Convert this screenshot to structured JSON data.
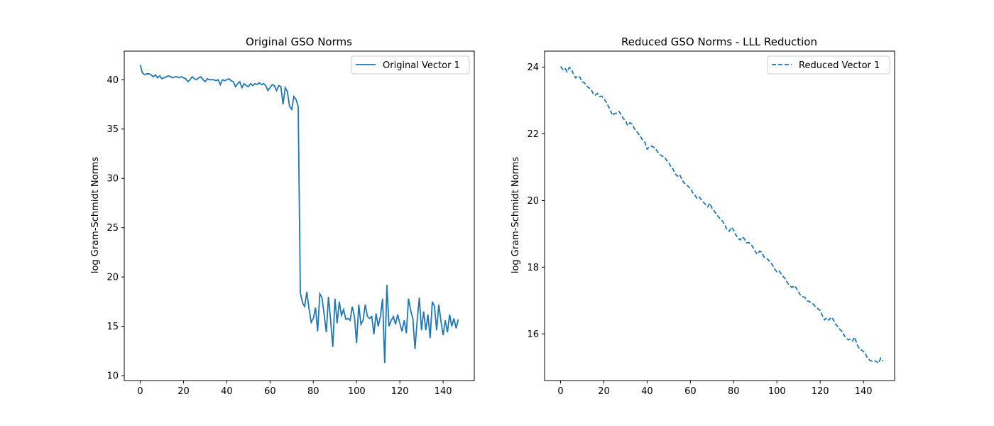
{
  "colors": {
    "series": "#1f77b4",
    "axes": "#000000",
    "legend_border": "#cccccc",
    "background": "#ffffff"
  },
  "chart_data": [
    {
      "type": "line",
      "title": "Original GSO Norms",
      "xlabel": "",
      "ylabel": "log Gram-Schmidt Norms",
      "xlim": [
        -7.4,
        154.4
      ],
      "ylim": [
        9.5,
        42.9
      ],
      "xticks": [
        0,
        20,
        40,
        60,
        80,
        100,
        120,
        140
      ],
      "yticks": [
        10,
        15,
        20,
        25,
        30,
        35,
        40
      ],
      "grid": false,
      "legend_position": "top-right",
      "series": [
        {
          "name": "Original Vector 1",
          "line_style": "solid",
          "color": "#1f77b4",
          "x_start": 0,
          "y": [
            41.5,
            40.7,
            40.5,
            40.6,
            40.6,
            40.5,
            40.3,
            40.5,
            40.2,
            40.4,
            40.1,
            40.2,
            40.3,
            40.4,
            40.3,
            40.2,
            40.3,
            40.3,
            40.2,
            40.3,
            40.2,
            40.1,
            39.8,
            40.0,
            40.3,
            40.1,
            40.0,
            40.2,
            40.3,
            40.0,
            39.8,
            40.1,
            40.0,
            40.0,
            40.0,
            39.9,
            40.0,
            39.5,
            40.0,
            39.9,
            40.0,
            40.1,
            39.9,
            39.8,
            39.3,
            39.6,
            39.8,
            39.2,
            39.6,
            39.4,
            39.3,
            39.6,
            39.4,
            39.6,
            39.5,
            39.7,
            39.5,
            39.6,
            39.4,
            38.9,
            39.2,
            39.5,
            39.4,
            38.9,
            39.4,
            39.3,
            37.5,
            39.2,
            38.8,
            37.3,
            37.0,
            38.3,
            38.0,
            37.3,
            18.4,
            17.4,
            17.0,
            18.5,
            16.8,
            15.4,
            15.8,
            16.9,
            14.5,
            18.3,
            17.9,
            16.2,
            14.4,
            18.0,
            15.6,
            12.9,
            17.8,
            15.3,
            17.5,
            16.1,
            16.7,
            15.7,
            15.8,
            15.6,
            17.0,
            16.0,
            13.3,
            17.2,
            15.2,
            15.6,
            17.2,
            16.0,
            15.8,
            16.0,
            14.2,
            16.3,
            15.0,
            16.0,
            17.8,
            11.3,
            19.2,
            15.0,
            15.6,
            16.0,
            15.2,
            16.2,
            15.3,
            14.5,
            15.6,
            14.3,
            17.8,
            16.6,
            15.8,
            12.7,
            15.6,
            17.9,
            14.6,
            16.5,
            14.6,
            16.2,
            13.8,
            17.5,
            17.0,
            14.6,
            17.2,
            15.5,
            14.1,
            15.6,
            14.4,
            16.2,
            15.0,
            15.8,
            14.8,
            15.7
          ]
        }
      ]
    },
    {
      "type": "line",
      "title": "Reduced GSO Norms - LLL Reduction",
      "xlabel": "",
      "ylabel": "log Gram-Schmidt Norms",
      "xlim": [
        -7.4,
        154.4
      ],
      "ylim": [
        14.6,
        24.48
      ],
      "xticks": [
        0,
        20,
        40,
        60,
        80,
        100,
        120,
        140
      ],
      "yticks": [
        16,
        18,
        20,
        22,
        24
      ],
      "grid": false,
      "legend_position": "top-right",
      "series": [
        {
          "name": "Reduced Vector 1",
          "line_style": "dashed",
          "color": "#1f77b4",
          "x_start": 0,
          "y": [
            24.02,
            23.93,
            23.97,
            23.86,
            23.99,
            23.94,
            23.78,
            23.68,
            23.74,
            23.69,
            23.56,
            23.53,
            23.44,
            23.38,
            23.35,
            23.21,
            23.16,
            23.21,
            23.12,
            23.13,
            23.06,
            22.96,
            22.84,
            22.72,
            22.55,
            22.61,
            22.62,
            22.67,
            22.57,
            22.46,
            22.39,
            22.25,
            22.33,
            22.3,
            22.17,
            22.08,
            22.0,
            21.91,
            21.81,
            21.74,
            21.54,
            21.61,
            21.63,
            21.6,
            21.54,
            21.45,
            21.37,
            21.33,
            21.31,
            21.2,
            21.14,
            21.01,
            20.94,
            20.8,
            20.73,
            20.78,
            20.65,
            20.53,
            20.49,
            20.42,
            20.37,
            20.24,
            20.17,
            20.07,
            20.11,
            20.03,
            19.95,
            19.88,
            19.81,
            19.92,
            19.77,
            19.69,
            19.59,
            19.51,
            19.43,
            19.37,
            19.26,
            19.11,
            19.08,
            19.2,
            19.11,
            18.97,
            18.86,
            18.82,
            18.91,
            18.85,
            18.73,
            18.74,
            18.69,
            18.59,
            18.47,
            18.39,
            18.48,
            18.45,
            18.31,
            18.28,
            18.22,
            18.15,
            18.06,
            17.94,
            17.86,
            17.89,
            17.8,
            17.71,
            17.64,
            17.52,
            17.44,
            17.39,
            17.45,
            17.37,
            17.26,
            17.15,
            17.12,
            17.09,
            16.99,
            16.97,
            16.93,
            16.88,
            16.8,
            16.75,
            16.7,
            16.55,
            16.42,
            16.48,
            16.41,
            16.5,
            16.44,
            16.3,
            16.23,
            16.14,
            16.08,
            15.96,
            15.88,
            15.82,
            15.85,
            15.79,
            15.9,
            15.69,
            15.56,
            15.52,
            15.47,
            15.39,
            15.26,
            15.21,
            15.18,
            15.2,
            15.17,
            15.12,
            15.27,
            15.19
          ]
        }
      ]
    }
  ]
}
